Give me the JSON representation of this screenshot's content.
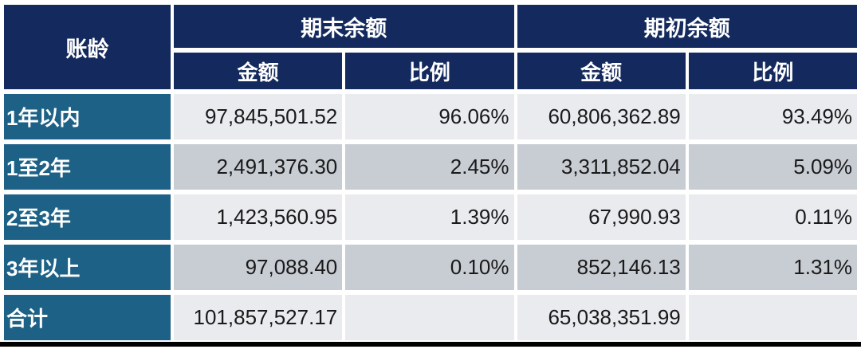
{
  "table": {
    "corner_header": "账龄",
    "groups": [
      {
        "label": "期末余额",
        "sub": [
          "金额",
          "比例"
        ]
      },
      {
        "label": "期初余额",
        "sub": [
          "金额",
          "比例"
        ]
      }
    ],
    "rows": [
      {
        "label": "1年以内",
        "end_amount": "97,845,501.52",
        "end_ratio": "96.06%",
        "begin_amount": "60,806,362.89",
        "begin_ratio": "93.49%"
      },
      {
        "label": "1至2年",
        "end_amount": "2,491,376.30",
        "end_ratio": "2.45%",
        "begin_amount": "3,311,852.04",
        "begin_ratio": "5.09%"
      },
      {
        "label": "2至3年",
        "end_amount": "1,423,560.95",
        "end_ratio": "1.39%",
        "begin_amount": "67,990.93",
        "begin_ratio": "0.11%"
      },
      {
        "label": "3年以上",
        "end_amount": "97,088.40",
        "end_ratio": "0.10%",
        "begin_amount": "852,146.13",
        "begin_ratio": "1.31%"
      },
      {
        "label": "合计",
        "end_amount": "101,857,527.17",
        "end_ratio": "",
        "begin_amount": "65,038,351.99",
        "begin_ratio": ""
      }
    ],
    "colors": {
      "header_bg": "#142a5e",
      "row_label_bg": "#1d6187",
      "row_light_bg": "#e9ebee",
      "row_dark_bg": "#c8ccd3",
      "header_text": "#ffffff",
      "number_text": "#1a1a1a",
      "bottom_rule": "#000000"
    }
  }
}
